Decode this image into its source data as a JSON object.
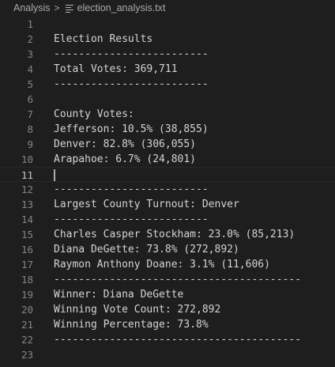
{
  "breadcrumb": {
    "folder": "Analysis",
    "separator": ">",
    "file": "election_analysis.txt",
    "file_icon": "text-file-icon"
  },
  "editor": {
    "current_line": 11,
    "lines": [
      {
        "number": "1",
        "text": ""
      },
      {
        "number": "2",
        "text": "Election Results"
      },
      {
        "number": "3",
        "text": "-------------------------"
      },
      {
        "number": "4",
        "text": "Total Votes: 369,711"
      },
      {
        "number": "5",
        "text": "-------------------------"
      },
      {
        "number": "6",
        "text": ""
      },
      {
        "number": "7",
        "text": "County Votes:"
      },
      {
        "number": "8",
        "text": "Jefferson: 10.5% (38,855)"
      },
      {
        "number": "9",
        "text": "Denver: 82.8% (306,055)"
      },
      {
        "number": "10",
        "text": "Arapahoe: 6.7% (24,801)"
      },
      {
        "number": "11",
        "text": ""
      },
      {
        "number": "12",
        "text": "-------------------------"
      },
      {
        "number": "13",
        "text": "Largest County Turnout: Denver"
      },
      {
        "number": "14",
        "text": "-------------------------"
      },
      {
        "number": "15",
        "text": "Charles Casper Stockham: 23.0% (85,213)"
      },
      {
        "number": "16",
        "text": "Diana DeGette: 73.8% (272,892)"
      },
      {
        "number": "17",
        "text": "Raymon Anthony Doane: 3.1% (11,606)"
      },
      {
        "number": "18",
        "text": "----------------------------------------"
      },
      {
        "number": "19",
        "text": "Winner: Diana DeGette"
      },
      {
        "number": "20",
        "text": "Winning Vote Count: 272,892"
      },
      {
        "number": "21",
        "text": "Winning Percentage: 73.8%"
      },
      {
        "number": "22",
        "text": "----------------------------------------"
      },
      {
        "number": "23",
        "text": ""
      }
    ]
  }
}
